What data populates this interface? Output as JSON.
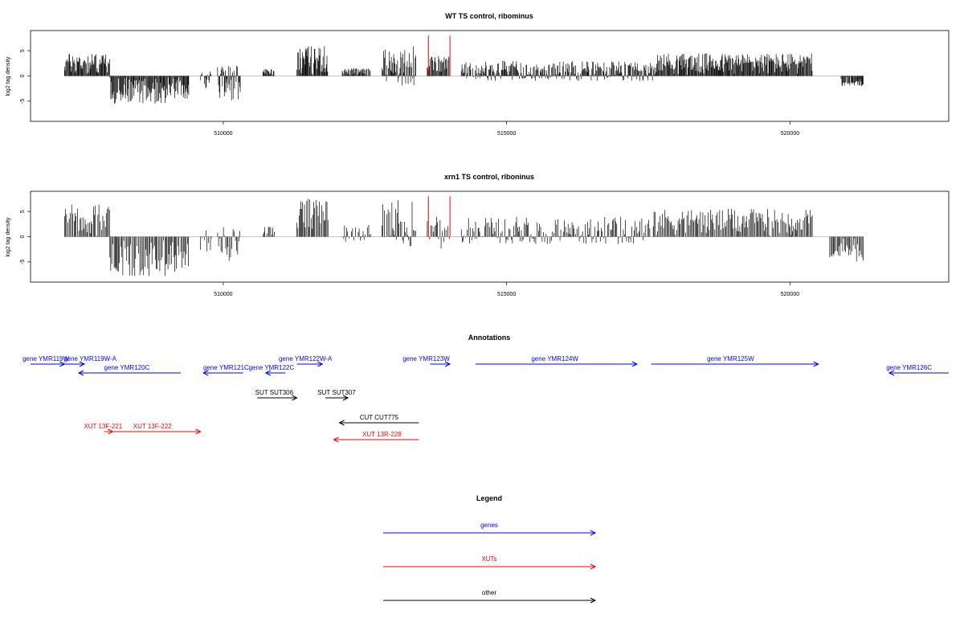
{
  "chart_data": [
    {
      "type": "bar",
      "title": "WT TS control, ribominus",
      "ylabel": "log2 tag density",
      "xlim": [
        506600,
        522800
      ],
      "ylim": [
        -9,
        9
      ],
      "x_ticks": [
        510000,
        515000,
        520000
      ],
      "x_tick_labels": [
        "510000",
        "515000",
        "520000"
      ],
      "y_ticks": [
        -5,
        0,
        5
      ],
      "y_tick_labels": [
        "-5",
        "0",
        "5"
      ],
      "grid": false,
      "color": "#000000",
      "highlight_color": "#ff0000",
      "highlight_x": [
        513620,
        514000
      ],
      "highlight_height": 8,
      "baseline": [
        507200,
        521300
      ],
      "segments": [
        {
          "x": [
            507200,
            508000
          ],
          "range": [
            0,
            4.5
          ]
        },
        {
          "x": [
            508000,
            509000
          ],
          "range": [
            -5.5,
            0
          ]
        },
        {
          "x": [
            509000,
            509400
          ],
          "range": [
            -4.5,
            0
          ]
        },
        {
          "x": [
            509600,
            509800
          ],
          "range": [
            -3.0,
            1.5
          ]
        },
        {
          "x": [
            509900,
            510300
          ],
          "range": [
            -5.0,
            2.0
          ]
        },
        {
          "x": [
            510700,
            510900
          ],
          "range": [
            0,
            1.5
          ]
        },
        {
          "x": [
            511300,
            511850
          ],
          "range": [
            0,
            6.0
          ]
        },
        {
          "x": [
            512100,
            512600
          ],
          "range": [
            0,
            1.5
          ]
        },
        {
          "x": [
            512800,
            513400
          ],
          "range": [
            -2.0,
            6.0
          ]
        },
        {
          "x": [
            513600,
            514000
          ],
          "range": [
            0,
            4.0
          ]
        },
        {
          "x": [
            514200,
            517600
          ],
          "range": [
            -1.0,
            3.0
          ]
        },
        {
          "x": [
            517600,
            520400
          ],
          "range": [
            0,
            4.5
          ]
        },
        {
          "x": [
            520900,
            521300
          ],
          "range": [
            -2.0,
            0
          ]
        }
      ]
    },
    {
      "type": "bar",
      "title": "xrn1 TS control, riboninus",
      "ylabel": "log2 tag density",
      "xlim": [
        506600,
        522800
      ],
      "ylim": [
        -9,
        9
      ],
      "x_ticks": [
        510000,
        515000,
        520000
      ],
      "x_tick_labels": [
        "510000",
        "515000",
        "520000"
      ],
      "y_ticks": [
        -5,
        0,
        5
      ],
      "y_tick_labels": [
        "-5",
        "0",
        "5"
      ],
      "grid": false,
      "color": "#000000",
      "highlight_color": "#ff0000",
      "highlight_x": [
        513620,
        514000
      ],
      "highlight_height": 8,
      "baseline": [
        507200,
        521300
      ],
      "segments": [
        {
          "x": [
            507200,
            508000
          ],
          "range": [
            0,
            6.5
          ]
        },
        {
          "x": [
            508000,
            509000
          ],
          "range": [
            -8.0,
            0
          ]
        },
        {
          "x": [
            509000,
            509400
          ],
          "range": [
            -7.0,
            0
          ]
        },
        {
          "x": [
            509600,
            509800
          ],
          "range": [
            -3.0,
            2.0
          ]
        },
        {
          "x": [
            509900,
            510300
          ],
          "range": [
            -5.0,
            2.0
          ]
        },
        {
          "x": [
            510700,
            510900
          ],
          "range": [
            0,
            2.0
          ]
        },
        {
          "x": [
            511300,
            511850
          ],
          "range": [
            0,
            7.5
          ]
        },
        {
          "x": [
            512100,
            512600
          ],
          "range": [
            -1.0,
            2.5
          ]
        },
        {
          "x": [
            512800,
            513400
          ],
          "range": [
            -2.5,
            7.5
          ]
        },
        {
          "x": [
            513600,
            514000
          ],
          "range": [
            -2.5,
            4.0
          ]
        },
        {
          "x": [
            514200,
            517600
          ],
          "range": [
            -1.5,
            4.0
          ]
        },
        {
          "x": [
            517600,
            520400
          ],
          "range": [
            0,
            5.5
          ]
        },
        {
          "x": [
            520700,
            521300
          ],
          "range": [
            -5.0,
            0
          ]
        }
      ]
    }
  ],
  "annotations": {
    "title": "Annotations",
    "items": [
      {
        "label": "gene YMR119W",
        "color": "#0000ff",
        "from": 506600,
        "to": 507200,
        "row": 0,
        "tx": 506870
      },
      {
        "label": "gene YMR119W-A",
        "color": "#0000ff",
        "from": 507050,
        "to": 507550,
        "row": 0,
        "tx": 507650
      },
      {
        "label": "gene YMR120C",
        "color": "#0000ff",
        "from": 509250,
        "to": 507450,
        "row": 1,
        "tx": 508300
      },
      {
        "label": "gene YMR121C",
        "color": "#0000ff",
        "from": 510350,
        "to": 509650,
        "row": 1,
        "tx": 510050
      },
      {
        "label": "gene YMR122C",
        "color": "#0000ff",
        "from": 511100,
        "to": 510750,
        "row": 1,
        "tx": 510850
      },
      {
        "label": "gene YMR122W-A",
        "color": "#0000ff",
        "from": 511300,
        "to": 511750,
        "row": 0,
        "tx": 511450
      },
      {
        "label": "gene YMR123W",
        "color": "#0000ff",
        "from": 513650,
        "to": 514000,
        "row": 0,
        "tx": 513580
      },
      {
        "label": "gene YMR124W",
        "color": "#0000ff",
        "from": 514450,
        "to": 517300,
        "row": 0,
        "tx": 515850
      },
      {
        "label": "gene YMR125W",
        "color": "#0000ff",
        "from": 517550,
        "to": 520500,
        "row": 0,
        "tx": 518950
      },
      {
        "label": "gene YMR126C",
        "color": "#0000ff",
        "from": 522800,
        "to": 521750,
        "row": 1,
        "tx": 522100
      },
      {
        "label": "SUT SUT306",
        "color": "#000000",
        "from": 510600,
        "to": 511300,
        "row": 2,
        "tx": 510900
      },
      {
        "label": "SUT SUT307",
        "color": "#000000",
        "from": 511800,
        "to": 512200,
        "row": 2,
        "tx": 512000
      },
      {
        "label": "CUT CUT775",
        "color": "#000000",
        "from": 513450,
        "to": 512050,
        "row": 3,
        "tx": 512750
      },
      {
        "label": "XUT 13F-221",
        "color": "#ff0000",
        "from": 507900,
        "to": 508050,
        "row": 4,
        "tx": 507880
      },
      {
        "label": "XUT 13F-222",
        "color": "#ff0000",
        "from": 508050,
        "to": 509600,
        "row": 4,
        "tx": 508750
      },
      {
        "label": "XUT 13R-228",
        "color": "#ff0000",
        "from": 513450,
        "to": 511950,
        "row": 5,
        "tx": 512800
      }
    ]
  },
  "legend": {
    "title": "Legend",
    "items": [
      {
        "label": "genes",
        "color": "#0000ff"
      },
      {
        "label": "XUTs",
        "color": "#ff0000"
      },
      {
        "label": "other",
        "color": "#000000"
      }
    ]
  }
}
